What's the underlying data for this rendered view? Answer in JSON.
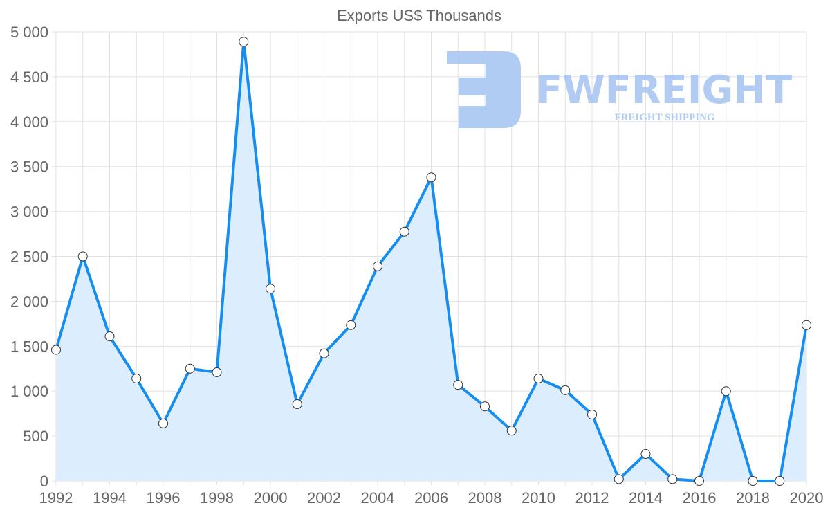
{
  "chart_data": {
    "type": "area",
    "title": "Exports US$ Thousands",
    "xlabel": "",
    "ylabel": "",
    "x": [
      1992,
      1993,
      1994,
      1995,
      1996,
      1997,
      1998,
      1999,
      2000,
      2001,
      2002,
      2003,
      2004,
      2005,
      2006,
      2007,
      2008,
      2009,
      2010,
      2011,
      2012,
      2013,
      2014,
      2015,
      2016,
      2017,
      2018,
      2019,
      2020
    ],
    "series": [
      {
        "name": "Exports US$ Thousands",
        "values": [
          1460,
          2500,
          1610,
          1140,
          640,
          1250,
          1210,
          4890,
          2140,
          855,
          1420,
          1735,
          2390,
          2775,
          3380,
          1070,
          830,
          560,
          1140,
          1010,
          740,
          20,
          300,
          20,
          0,
          1000,
          0,
          0,
          1735
        ]
      }
    ],
    "xlim": [
      1992,
      2020
    ],
    "ylim": [
      0,
      5000
    ],
    "x_ticks": [
      "1992",
      "1994",
      "1996",
      "1998",
      "2000",
      "2002",
      "2004",
      "2006",
      "2008",
      "2010",
      "2012",
      "2014",
      "2016",
      "2018",
      "2020"
    ],
    "y_ticks": [
      "0",
      "500",
      "1 000",
      "1 500",
      "2 000",
      "2 500",
      "3 000",
      "3 500",
      "4 000",
      "4 500",
      "5 000"
    ],
    "grid": true,
    "legend": "none",
    "colors": {
      "line": "#168ef0",
      "fill": "#dcedfd",
      "marker_fill": "#ffffff",
      "watermark": "#a9c6f2"
    }
  },
  "watermark": {
    "brand": "FWFREIGHT",
    "tagline": "FREIGHT SHIPPING"
  }
}
